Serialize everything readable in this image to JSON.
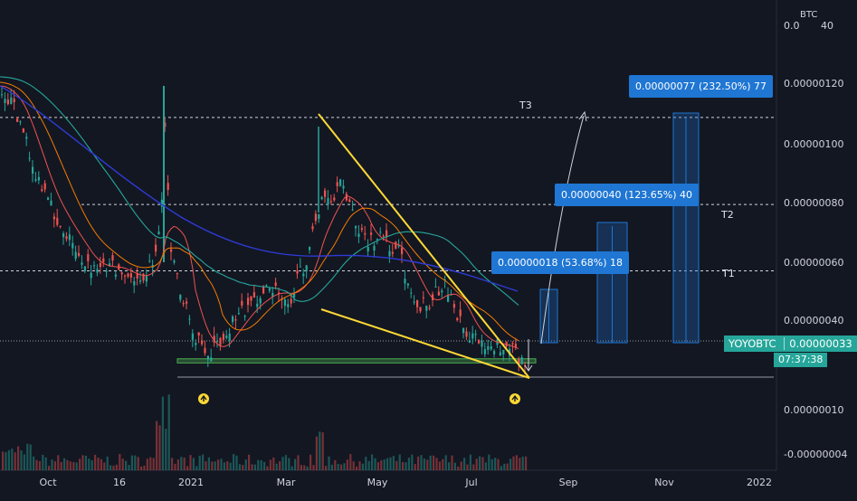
{
  "chart_data": {
    "type": "candlestick",
    "symbol": "YOYOBTC",
    "unit": "BTC",
    "y_axis_labels": [
      "0.0",
      "40",
      "0.00000120",
      "0.00000100",
      "0.00000080",
      "0.00000060",
      "0.00000040",
      "0.00000010",
      "-0.00000004"
    ],
    "x_axis_labels": [
      "Oct",
      "16",
      "2021",
      "Mar",
      "May",
      "Jul",
      "Sep",
      "Nov",
      "2022"
    ],
    "last_price": "0.00000033",
    "countdown": "07:37:38",
    "targets": [
      {
        "label": "T1",
        "info": "0.00000018 (53.68%) 18",
        "level": 5.7e-07
      },
      {
        "label": "T2",
        "info": "0.00000040 (123.65%) 40",
        "level": 7.95e-07
      },
      {
        "label": "T3",
        "info": "0.00000077 (232.50%) 77",
        "level": 1.09e-06
      }
    ],
    "support_zone": [
      2.58e-07,
      2.72e-07
    ],
    "pattern": "falling wedge",
    "colors": {
      "up": "#26a69a",
      "down": "#ef5350",
      "wedge": "#fdd835",
      "zone": "#4caf50",
      "info": "#1f76d3"
    }
  }
}
